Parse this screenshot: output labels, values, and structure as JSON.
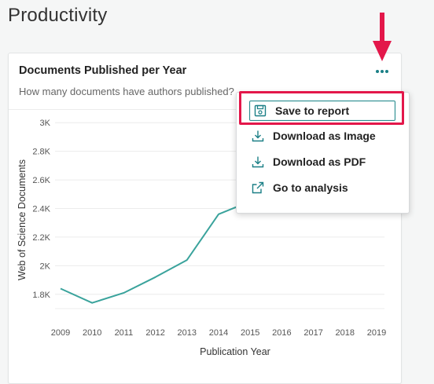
{
  "page": {
    "title": "Productivity"
  },
  "card": {
    "title": "Documents Published per Year",
    "subtitle": "How many documents have authors published?"
  },
  "menu": {
    "items": [
      {
        "label": "Save to report",
        "icon": "save-report-icon"
      },
      {
        "label": "Download as Image",
        "icon": "download-icon"
      },
      {
        "label": "Download as PDF",
        "icon": "download-icon"
      },
      {
        "label": "Go to analysis",
        "icon": "external-link-icon"
      }
    ]
  },
  "colors": {
    "accent": "#1a7f86",
    "line": "#3aa39c",
    "highlight": "#e3174a"
  },
  "chart_data": {
    "type": "line",
    "xlabel": "Publication Year",
    "ylabel": "Web of Science Documents",
    "x": [
      2009,
      2010,
      2011,
      2012,
      2013,
      2014,
      2015,
      2016,
      2017,
      2018,
      2019
    ],
    "y_ticks": [
      "1.8K",
      "2K",
      "2.2K",
      "2.4K",
      "2.6K",
      "2.8K",
      "3K"
    ],
    "ylim": [
      1700,
      3100
    ],
    "series": [
      {
        "x": [
          2009,
          2010,
          2011,
          2012,
          2013,
          2014,
          2015
        ],
        "values": [
          1840,
          1740,
          1810,
          1920,
          2040,
          2360,
          2450
        ]
      }
    ],
    "grid": true
  }
}
